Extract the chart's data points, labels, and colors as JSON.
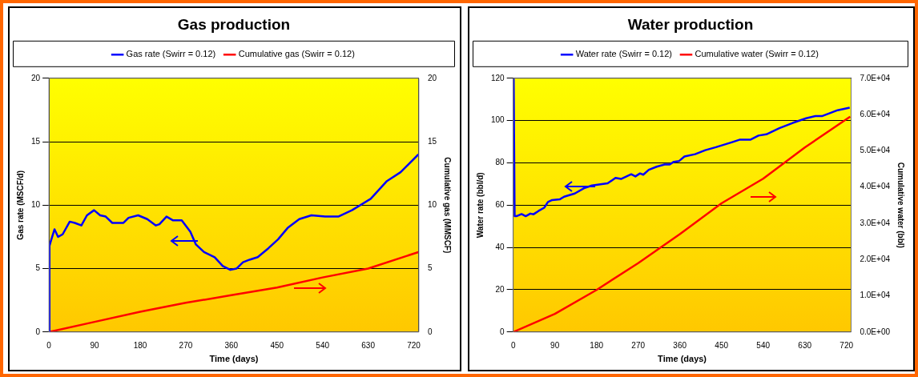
{
  "chart_data": [
    {
      "type": "line",
      "title": "Gas production",
      "xlabel": "Time (days)",
      "ylabel": "Gas rate (MSCF/d)",
      "y2label": "Cumulative gas (MMSCF)",
      "xlim": [
        0,
        730
      ],
      "xticks": [
        0,
        90,
        180,
        270,
        360,
        450,
        540,
        630,
        720
      ],
      "ylim": [
        0,
        20
      ],
      "yticks": [
        0,
        5,
        10,
        15,
        20
      ],
      "y2lim": [
        0,
        20
      ],
      "y2ticks": [
        0,
        5,
        10,
        15,
        20
      ],
      "grid": "y",
      "legend": "top",
      "series": [
        {
          "name": "Gas rate (Swirr = 0.12)",
          "color": "#0000ff",
          "x": [
            0,
            1,
            4,
            11,
            18,
            27,
            41,
            51,
            64,
            75,
            89,
            101,
            112,
            125,
            147,
            157,
            176,
            194,
            211,
            218,
            232,
            245,
            262,
            279,
            290,
            306,
            327,
            343,
            358,
            370,
            383,
            396,
            412,
            433,
            452,
            471,
            494,
            518,
            545,
            571,
            598,
            635,
            667,
            694,
            729
          ],
          "values": [
            0,
            6.8,
            7.2,
            8.1,
            7.5,
            7.7,
            8.7,
            8.6,
            8.4,
            9.2,
            9.6,
            9.2,
            9.1,
            8.6,
            8.6,
            9.0,
            9.2,
            8.9,
            8.4,
            8.5,
            9.1,
            8.8,
            8.8,
            7.9,
            6.9,
            6.3,
            5.9,
            5.2,
            4.9,
            5.0,
            5.5,
            5.7,
            5.9,
            6.6,
            7.3,
            8.2,
            8.9,
            9.2,
            9.1,
            9.1,
            9.6,
            10.5,
            11.9,
            12.6,
            14.0
          ]
        },
        {
          "name": "Cumulative gas (Swirr = 0.12)",
          "color": "#ff0000",
          "axis": "y2",
          "x": [
            0,
            90,
            180,
            270,
            360,
            450,
            540,
            630,
            729
          ],
          "values": [
            0,
            0.8,
            1.6,
            2.3,
            2.9,
            3.5,
            4.3,
            5.0,
            6.3
          ]
        }
      ]
    },
    {
      "type": "line",
      "title": "Water production",
      "xlabel": "Time (days)",
      "ylabel": "Water rate (bbl/d)",
      "y2label": "Cumulative water (bbl)",
      "xlim": [
        0,
        730
      ],
      "xticks": [
        0,
        90,
        180,
        270,
        360,
        450,
        540,
        630,
        720
      ],
      "ylim": [
        0,
        120
      ],
      "yticks": [
        0,
        20,
        40,
        60,
        80,
        100,
        120
      ],
      "y2lim": [
        0,
        70000
      ],
      "y2ticks": [
        {
          "value": 0,
          "label": "0.0E+00"
        },
        {
          "value": 10000,
          "label": "1.0E+04"
        },
        {
          "value": 20000,
          "label": "2.0E+04"
        },
        {
          "value": 30000,
          "label": "3.0E+04"
        },
        {
          "value": 40000,
          "label": "4.0E+04"
        },
        {
          "value": 50000,
          "label": "5.0E+04"
        },
        {
          "value": 60000,
          "label": "6.0E+04"
        },
        {
          "value": 70000,
          "label": "7.0E+04"
        }
      ],
      "grid": "y",
      "legend": "top",
      "series": [
        {
          "name": "Water rate (Swirr = 0.12)",
          "color": "#0000ff",
          "x": [
            0,
            1,
            3,
            7,
            18,
            27,
            37,
            44,
            55,
            67,
            75,
            84,
            101,
            110,
            133,
            153,
            170,
            204,
            221,
            233,
            255,
            264,
            274,
            281,
            293,
            310,
            327,
            338,
            347,
            358,
            370,
            393,
            415,
            438,
            473,
            490,
            513,
            530,
            547,
            575,
            604,
            633,
            653,
            667,
            701,
            727
          ],
          "values": [
            120,
            120,
            54.8,
            54.8,
            55.8,
            54.8,
            56,
            55.7,
            57.3,
            58.8,
            61.5,
            62.4,
            62.8,
            64,
            65.5,
            68,
            69.3,
            70.3,
            72.9,
            72.4,
            74.6,
            73.6,
            75,
            74.4,
            76.7,
            78.2,
            79.2,
            79.2,
            80.5,
            80.8,
            83,
            84.1,
            86,
            87.4,
            89.8,
            91,
            91,
            92.9,
            93.5,
            96.4,
            98.9,
            101.1,
            102.1,
            102.1,
            104.9,
            106.1
          ]
        },
        {
          "name": "Cumulative water (Swirr = 0.12)",
          "color": "#ff0000",
          "axis": "y2",
          "x": [
            0,
            90,
            180,
            270,
            360,
            450,
            540,
            630,
            728
          ],
          "values": [
            0,
            5000,
            11600,
            19000,
            27000,
            35500,
            42300,
            50900,
            59400
          ]
        }
      ]
    }
  ]
}
